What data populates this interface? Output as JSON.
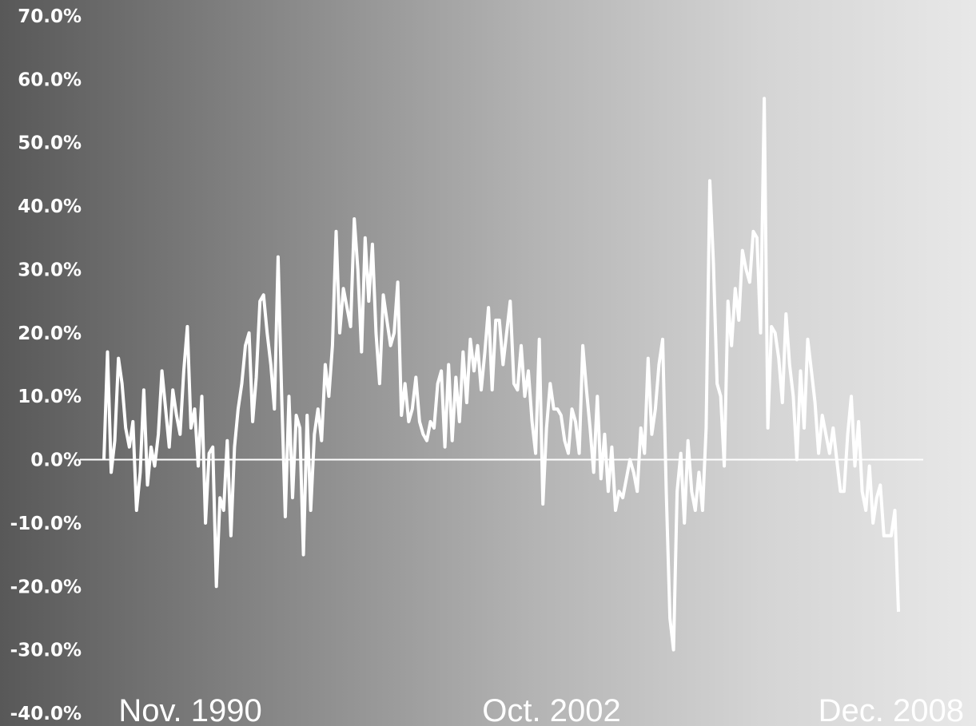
{
  "chart_data": {
    "type": "line",
    "title": "",
    "xlabel": "",
    "ylabel": "",
    "ylim": [
      -40,
      70
    ],
    "y_ticks": [
      "70.0%",
      "60.0%",
      "50.0%",
      "40.0%",
      "30.0%",
      "20.0%",
      "10.0%",
      "0.0%",
      "-10.0%",
      "-20.0%",
      "-30.0%",
      "-40.0%"
    ],
    "x_tick_labels": [
      "Nov. 1990",
      "Oct. 2002",
      "Dec. 2008"
    ],
    "x_start": "1987-10",
    "x_end": "2009-02",
    "grid": false,
    "zero_line": true,
    "colors": {
      "line": "#ffffff",
      "zero_line": "#ffffff"
    },
    "series": [
      {
        "values": [
          0.0,
          17.0,
          -2.0,
          3.0,
          16.0,
          12.0,
          5.0,
          2.0,
          6.0,
          -8.0,
          -2.0,
          11.0,
          -4.0,
          2.0,
          -1.0,
          4.0,
          14.0,
          8.0,
          2.0,
          11.0,
          7.0,
          4.0,
          14.0,
          21.0,
          5.0,
          8.0,
          -1.0,
          10.0,
          -10.0,
          1.0,
          2.0,
          -20.0,
          -6.0,
          -8.0,
          3.0,
          -12.0,
          2.0,
          8.0,
          12.0,
          18.0,
          20.0,
          6.0,
          13.0,
          25.0,
          26.0,
          20.0,
          15.0,
          8.0,
          32.0,
          10.0,
          -9.0,
          10.0,
          -6.0,
          7.0,
          5.0,
          -15.0,
          7.0,
          -8.0,
          4.0,
          8.0,
          3.0,
          15.0,
          10.0,
          18.0,
          36.0,
          20.0,
          27.0,
          24.0,
          21.0,
          38.0,
          30.0,
          17.0,
          35.0,
          25.0,
          34.0,
          20.0,
          12.0,
          26.0,
          22.0,
          18.0,
          20.0,
          28.0,
          7.0,
          12.0,
          6.0,
          8.0,
          13.0,
          6.0,
          4.0,
          3.0,
          6.0,
          5.0,
          12.0,
          14.0,
          2.0,
          15.0,
          3.0,
          13.0,
          6.0,
          17.0,
          9.0,
          19.0,
          14.0,
          18.0,
          11.0,
          17.0,
          24.0,
          11.0,
          22.0,
          22.0,
          15.0,
          20.0,
          25.0,
          12.0,
          11.0,
          18.0,
          10.0,
          14.0,
          6.0,
          1.0,
          19.0,
          -7.0,
          5.0,
          12.0,
          8.0,
          8.0,
          7.0,
          3.0,
          1.0,
          8.0,
          6.0,
          1.0,
          18.0,
          11.0,
          5.0,
          -2.0,
          10.0,
          -3.0,
          4.0,
          -5.0,
          2.0,
          -8.0,
          -5.0,
          -6.0,
          -3.0,
          0.0,
          -2.0,
          -5.0,
          5.0,
          1.0,
          16.0,
          4.0,
          8.0,
          15.0,
          19.0,
          -5.0,
          -25.0,
          -30.0,
          -5.0,
          1.0,
          -10.0,
          3.0,
          -5.0,
          -8.0,
          -2.0,
          -8.0,
          5.0,
          44.0,
          31.0,
          12.0,
          10.0,
          -1.0,
          25.0,
          18.0,
          27.0,
          22.0,
          33.0,
          30.0,
          28.0,
          36.0,
          35.0,
          20.0,
          57.0,
          5.0,
          21.0,
          20.0,
          16.0,
          9.0,
          23.0,
          15.0,
          10.0,
          0.0,
          14.0,
          5.0,
          19.0,
          14.0,
          9.0,
          1.0,
          7.0,
          4.0,
          1.0,
          5.0,
          0.0,
          -5.0,
          -5.0,
          4.0,
          10.0,
          -1.0,
          6.0,
          -5.0,
          -8.0,
          -1.0,
          -10.0,
          -6.0,
          -4.0,
          -12.0,
          -12.0,
          -12.0,
          -8.0,
          -24.0
        ]
      }
    ]
  }
}
